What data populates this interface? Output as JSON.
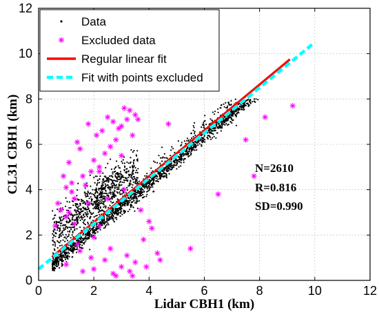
{
  "chart_data": {
    "type": "scatter",
    "xlabel": "Lidar CBH1 (km)",
    "ylabel": "CL31 CBH1 (km)",
    "xlim": [
      0,
      12
    ],
    "ylim": [
      0,
      12
    ],
    "xticks": [
      "0",
      "2",
      "4",
      "6",
      "8",
      "10",
      "12"
    ],
    "yticks": [
      "0",
      "2",
      "4",
      "6",
      "8",
      "10",
      "12"
    ],
    "grid": "dotted",
    "legend_position": "top-left",
    "legend": [
      {
        "label": "Data",
        "marker": "dot",
        "color": "#000000"
      },
      {
        "label": "Excluded data",
        "marker": "asterisk",
        "color": "#ff00ff"
      },
      {
        "label": "Regular linear fit",
        "marker": "solid-line",
        "color": "#ff0000"
      },
      {
        "label": "Fit with points excluded",
        "marker": "dashed-line",
        "color": "#00ffff"
      }
    ],
    "stats": {
      "n": "N=2610",
      "r": "R=0.816",
      "sd": "SD=0.990"
    },
    "series": [
      {
        "name": "Regular linear fit",
        "type": "line",
        "color": "#ff0000",
        "x": [
          0.5,
          9.1
        ],
        "y": [
          1.05,
          9.75
        ]
      },
      {
        "name": "Fit with points excluded",
        "type": "line",
        "color": "#00ffff",
        "x": [
          0.0,
          10.0
        ],
        "y": [
          0.5,
          10.5
        ]
      },
      {
        "name": "Excluded data",
        "type": "scatter",
        "color": "#ff00ff",
        "x": [
          0.7,
          1.0,
          1.2,
          1.3,
          1.6,
          1.9,
          2.0,
          2.2,
          2.4,
          2.6,
          2.8,
          3.0,
          3.2,
          3.3,
          3.5,
          3.1,
          2.7,
          2.3,
          1.8,
          1.4,
          1.1,
          0.9,
          1.5,
          2.1,
          2.5,
          2.9,
          3.4,
          3.6,
          3.0,
          2.2,
          1.7,
          1.2,
          0.8,
          1.0,
          1.3,
          2.0,
          2.6,
          3.2,
          3.8,
          4.1,
          4.3,
          4.7,
          5.5,
          6.5,
          7.5,
          7.8,
          8.2,
          9.2,
          1.6,
          2.4,
          3.0,
          3.5,
          4.0,
          1.9,
          2.8,
          3.3,
          1.4,
          2.2,
          3.7,
          4.4,
          1.1,
          1.8,
          2.5,
          3.1,
          0.6,
          1.0,
          1.5,
          2.0,
          2.7,
          3.4,
          3.9
        ],
        "y": [
          3.4,
          4.1,
          4.3,
          3.6,
          4.6,
          4.8,
          5.3,
          5.0,
          5.6,
          5.9,
          6.2,
          6.8,
          7.1,
          7.5,
          7.3,
          7.6,
          7.0,
          6.6,
          6.9,
          6.1,
          5.2,
          4.6,
          5.8,
          6.4,
          7.2,
          6.7,
          6.4,
          7.1,
          5.5,
          4.8,
          4.2,
          3.9,
          3.1,
          2.8,
          2.5,
          1.9,
          1.4,
          1.1,
          1.8,
          2.3,
          1.2,
          6.9,
          1.4,
          3.8,
          6.2,
          4.6,
          7.2,
          7.7,
          0.4,
          0.9,
          0.6,
          0.8,
          2.6,
          1.0,
          0.2,
          0.4,
          1.6,
          2.4,
          3.1,
          0.9,
          3.0,
          3.4,
          3.6,
          4.0,
          2.4,
          0.7,
          1.3,
          0.5,
          0.3,
          0.2,
          0.6
        ]
      }
    ]
  }
}
